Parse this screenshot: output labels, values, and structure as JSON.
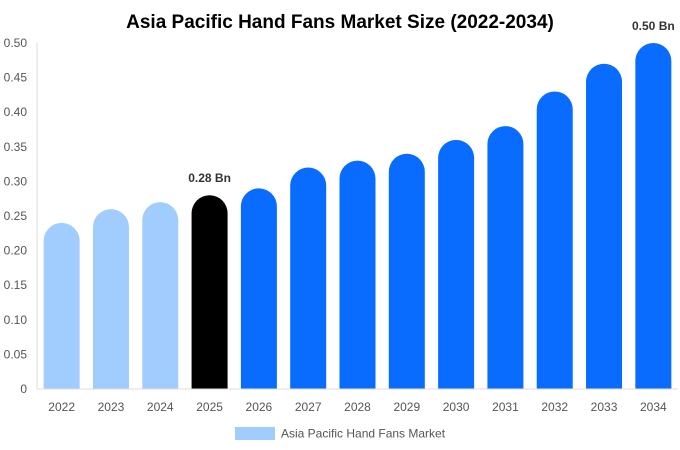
{
  "chart_data": {
    "type": "bar",
    "title": "Asia Pacific Hand Fans Market Size (2022-2034)",
    "xlabel": "",
    "ylabel": "",
    "categories": [
      "2022",
      "2023",
      "2024",
      "2025",
      "2026",
      "2027",
      "2028",
      "2029",
      "2030",
      "2031",
      "2032",
      "2033",
      "2034"
    ],
    "series": [
      {
        "name": "Asia Pacific Hand Fans Market",
        "values": [
          0.24,
          0.26,
          0.27,
          0.28,
          0.29,
          0.32,
          0.33,
          0.34,
          0.36,
          0.38,
          0.43,
          0.47,
          0.5
        ]
      }
    ],
    "ylim": [
      0,
      0.5
    ],
    "yticks": [
      "0",
      "0.05",
      "0.10",
      "0.15",
      "0.20",
      "0.25",
      "0.30",
      "0.35",
      "0.40",
      "0.45",
      "0.50"
    ],
    "annotations": [
      {
        "category": "2025",
        "text": "0.28 Bn"
      },
      {
        "category": "2034",
        "text": "0.50 Bn"
      }
    ],
    "bar_colors": {
      "historical": "#a0cdfd",
      "current": "#000000",
      "forecast": "#0a6cff"
    },
    "legend_placement": "bottom-center",
    "grid": false
  }
}
